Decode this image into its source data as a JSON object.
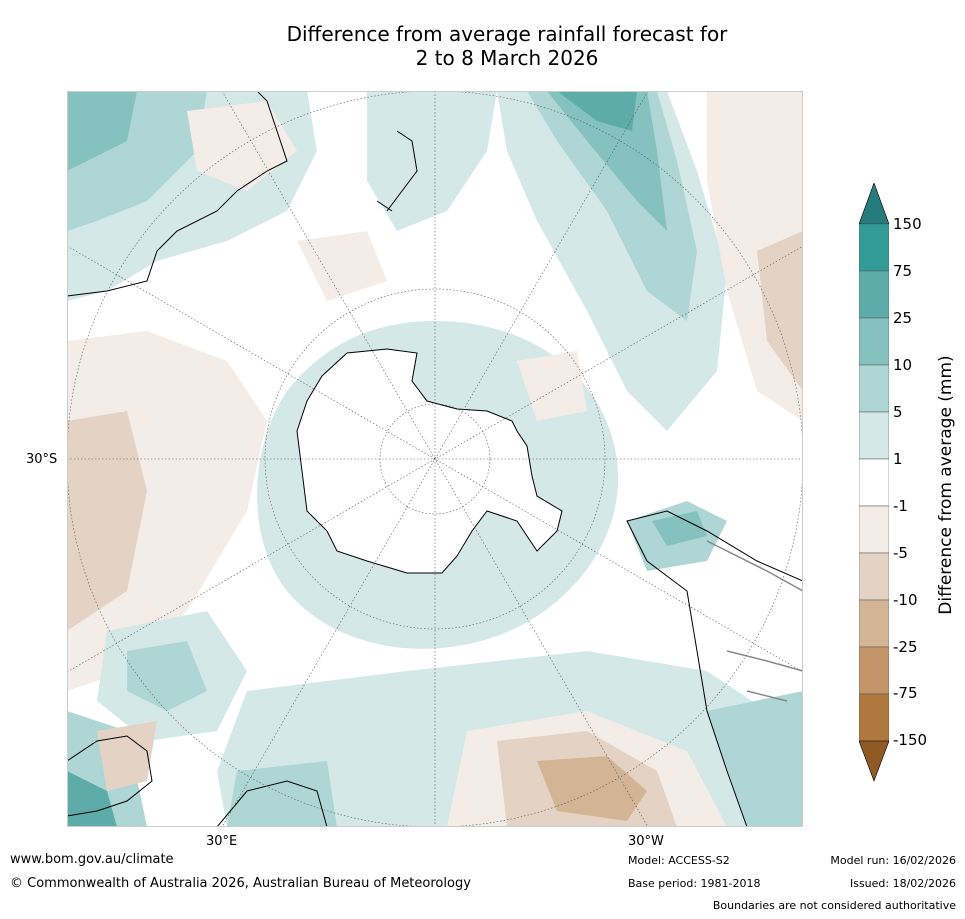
{
  "title": {
    "line1": "Difference from average rainfall forecast for",
    "line2": "2 to 8 March 2026"
  },
  "map": {
    "projection": "south-polar-stereographic",
    "lat_label": "30°S",
    "lon_labels": [
      "30°E",
      "30°W"
    ],
    "colors": {
      "land_outline": "#000000",
      "border": "#888888",
      "graticule": "#555555"
    }
  },
  "colorbar": {
    "title": "Difference from average (mm)",
    "ticks": [
      "150",
      "75",
      "25",
      "10",
      "5",
      "1",
      "-1",
      "-5",
      "-10",
      "-25",
      "-75",
      "-150"
    ],
    "colors": {
      "above_150": "#267c7b",
      "75_150": "#329b98",
      "25_75": "#5eacaa",
      "10_25": "#84c1bf",
      "5_10": "#add6d4",
      "1_5": "#d4e8e7",
      "-1_1": "#ffffff",
      "-5_-1": "#f4ece7",
      "-10_-5": "#e4d3c4",
      "-25_-10": "#d3b596",
      "-75_-25": "#c39569",
      "-150_-75": "#ae783f",
      "below_-150": "#8f5a24"
    }
  },
  "footer": {
    "website": "www.bom.gov.au/climate",
    "copyright": "© Commonwealth of Australia 2026, Australian Bureau of Meteorology",
    "model": "Model: ACCESS-S2",
    "base_period": "Base period: 1981-2018",
    "model_run": "Model run: 16/02/2026",
    "issued": "Issued: 18/02/2026",
    "disclaimer": "Boundaries are not considered authoritative"
  }
}
